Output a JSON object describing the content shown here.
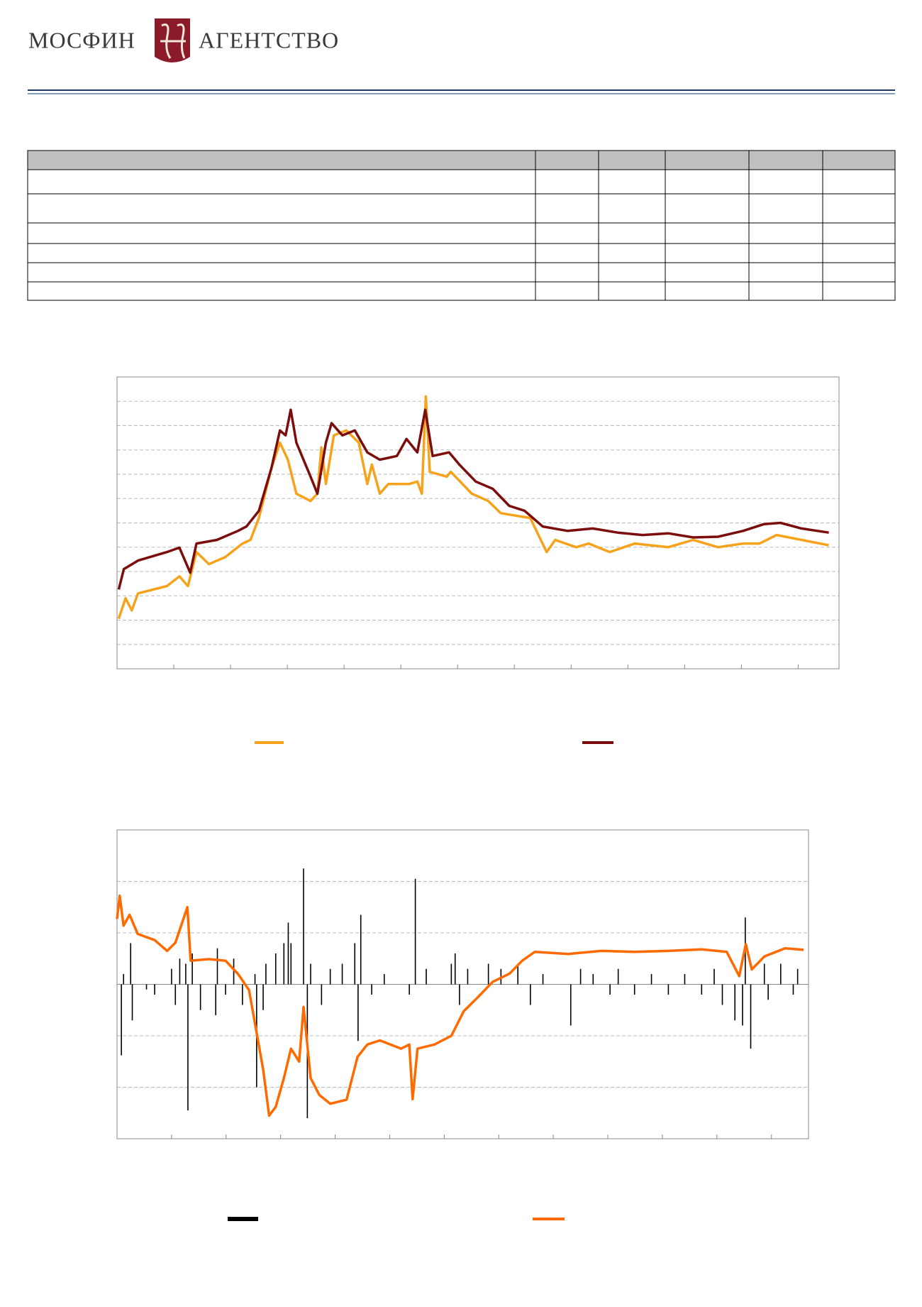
{
  "header": {
    "logo_left": "МОСФИН",
    "logo_right": "АГЕНТСТВО"
  },
  "chart_data": [
    {
      "type": "line",
      "xlim": [
        0,
        12.72
      ],
      "xticks": [
        1,
        2,
        3,
        4,
        5,
        6,
        7,
        8,
        9,
        10,
        11,
        12
      ],
      "ylim": [
        0,
        12
      ],
      "yticks": [
        1,
        2,
        3,
        4,
        5,
        6,
        7,
        8,
        9,
        10,
        11
      ],
      "grid": true,
      "series": [
        {
          "color": "#f7a21b",
          "x": [
            0.03,
            0.15,
            0.26,
            0.37,
            0.88,
            1.1,
            1.25,
            1.4,
            1.62,
            1.91,
            2.21,
            2.35,
            2.5,
            2.72,
            2.87,
            3.01,
            3.16,
            3.41,
            3.53,
            3.6,
            3.68,
            3.82,
            4.04,
            4.26,
            4.41,
            4.49,
            4.63,
            4.78,
            5.15,
            5.29,
            5.37,
            5.44,
            5.51,
            5.81,
            5.88,
            6.25,
            6.54,
            6.76,
            7.28,
            7.57,
            7.72,
            8.09,
            8.31,
            8.68,
            9.12,
            9.71,
            10.15,
            10.59,
            11.03,
            11.32,
            11.62,
            12.06,
            12.54
          ],
          "values": [
            2.06,
            2.9,
            2.4,
            3.1,
            3.4,
            3.8,
            3.4,
            4.8,
            4.3,
            4.6,
            5.15,
            5.3,
            6.2,
            8.25,
            9.3,
            8.6,
            7.2,
            6.9,
            7.2,
            9.1,
            7.6,
            9.6,
            9.8,
            9.3,
            7.6,
            8.4,
            7.2,
            7.6,
            7.6,
            7.7,
            7.2,
            11.2,
            8.1,
            7.9,
            8.1,
            7.2,
            6.9,
            6.4,
            6.2,
            4.8,
            5.3,
            5.0,
            5.15,
            4.8,
            5.15,
            5.0,
            5.3,
            5.0,
            5.15,
            5.15,
            5.5,
            5.3,
            5.08
          ]
        },
        {
          "color": "#7b0d0d",
          "x": [
            0.03,
            0.12,
            0.37,
            0.88,
            1.1,
            1.29,
            1.4,
            1.76,
            2.13,
            2.28,
            2.5,
            2.72,
            2.87,
            2.97,
            3.06,
            3.16,
            3.41,
            3.53,
            3.68,
            3.78,
            3.97,
            4.19,
            4.41,
            4.63,
            4.93,
            5.1,
            5.29,
            5.43,
            5.56,
            5.85,
            6.03,
            6.32,
            6.62,
            6.91,
            7.18,
            7.5,
            7.94,
            8.38,
            8.82,
            9.26,
            9.71,
            10.15,
            10.59,
            11.03,
            11.4,
            11.69,
            12.06,
            12.54
          ],
          "values": [
            3.26,
            4.1,
            4.45,
            4.8,
            4.98,
            3.95,
            5.15,
            5.3,
            5.67,
            5.85,
            6.5,
            8.25,
            9.8,
            9.6,
            10.65,
            9.3,
            7.9,
            7.2,
            9.3,
            10.1,
            9.6,
            9.8,
            8.9,
            8.6,
            8.75,
            9.45,
            8.9,
            10.65,
            8.75,
            8.9,
            8.4,
            7.7,
            7.4,
            6.7,
            6.5,
            5.85,
            5.67,
            5.77,
            5.6,
            5.5,
            5.57,
            5.4,
            5.43,
            5.67,
            5.95,
            6.0,
            5.77,
            5.6
          ]
        }
      ]
    },
    {
      "type": "combo",
      "xlim": [
        0,
        12.68
      ],
      "xticks": [
        1,
        2,
        3,
        4,
        5,
        6,
        7,
        8,
        9,
        10,
        11,
        12
      ],
      "ylim": [
        -3,
        3
      ],
      "yticks": [
        -2,
        -1,
        0,
        1,
        2
      ],
      "grid": true,
      "series": [
        {
          "type": "bar",
          "color": "#000000",
          "x": [
            0.08,
            0.12,
            0.25,
            0.28,
            0.54,
            0.69,
            1.0,
            1.07,
            1.15,
            1.26,
            1.3,
            1.38,
            1.53,
            1.81,
            1.84,
            1.99,
            2.14,
            2.3,
            2.53,
            2.56,
            2.68,
            2.73,
            2.91,
            3.06,
            3.14,
            3.19,
            3.42,
            3.49,
            3.55,
            3.75,
            3.91,
            4.13,
            4.36,
            4.42,
            4.47,
            4.67,
            4.9,
            5.36,
            5.47,
            5.67,
            6.13,
            6.2,
            6.28,
            6.43,
            6.81,
            7.04,
            7.35,
            7.58,
            7.81,
            8.32,
            8.5,
            8.73,
            9.04,
            9.19,
            9.49,
            9.8,
            10.11,
            10.41,
            10.72,
            10.95,
            11.1,
            11.33,
            11.47,
            11.52,
            11.62,
            11.87,
            11.94,
            12.17,
            12.4,
            12.48
          ],
          "values": [
            -1.38,
            0.2,
            0.8,
            -0.7,
            -0.1,
            -0.2,
            0.3,
            -0.4,
            0.5,
            0.4,
            -2.45,
            0.6,
            -0.5,
            -0.6,
            0.7,
            -0.2,
            0.5,
            -0.4,
            0.2,
            -2.0,
            -0.5,
            0.4,
            0.6,
            0.8,
            1.2,
            0.8,
            2.25,
            -2.6,
            0.4,
            -0.4,
            0.3,
            0.4,
            0.8,
            -1.1,
            1.35,
            -0.2,
            0.2,
            -0.2,
            2.05,
            0.3,
            0.4,
            0.6,
            -0.4,
            0.3,
            0.4,
            0.3,
            0.4,
            -0.4,
            0.2,
            -0.8,
            0.3,
            0.2,
            -0.2,
            0.3,
            -0.2,
            0.2,
            -0.2,
            0.2,
            -0.2,
            0.3,
            -0.4,
            -0.7,
            -0.8,
            1.3,
            -1.25,
            0.4,
            -0.3,
            0.4,
            -0.2,
            0.3
          ]
        },
        {
          "type": "line",
          "color": "#ff6a00",
          "x": [
            0,
            0.05,
            0.12,
            0.23,
            0.38,
            0.69,
            0.92,
            1.07,
            1.29,
            1.35,
            1.68,
            1.99,
            2.22,
            2.42,
            2.57,
            2.68,
            2.79,
            2.91,
            3.06,
            3.19,
            3.34,
            3.42,
            3.55,
            3.71,
            3.91,
            4.21,
            4.41,
            4.59,
            4.82,
            5.21,
            5.36,
            5.42,
            5.51,
            5.82,
            6.13,
            6.36,
            6.59,
            6.89,
            7.2,
            7.43,
            7.66,
            8.27,
            8.88,
            9.49,
            10.11,
            10.72,
            11.18,
            11.41,
            11.53,
            11.64,
            11.87,
            12.25,
            12.59
          ],
          "values": [
            1.27,
            1.72,
            1.14,
            1.35,
            0.98,
            0.86,
            0.65,
            0.81,
            1.5,
            0.46,
            0.49,
            0.46,
            0.2,
            -0.11,
            -1.0,
            -1.66,
            -2.55,
            -2.38,
            -1.82,
            -1.25,
            -1.5,
            -0.44,
            -1.82,
            -2.15,
            -2.32,
            -2.24,
            -1.41,
            -1.17,
            -1.09,
            -1.25,
            -1.17,
            -2.23,
            -1.25,
            -1.17,
            -1.0,
            -0.52,
            -0.28,
            0.05,
            0.21,
            0.46,
            0.63,
            0.59,
            0.65,
            0.63,
            0.65,
            0.68,
            0.63,
            0.16,
            0.78,
            0.29,
            0.54,
            0.7,
            0.67
          ]
        }
      ]
    }
  ]
}
